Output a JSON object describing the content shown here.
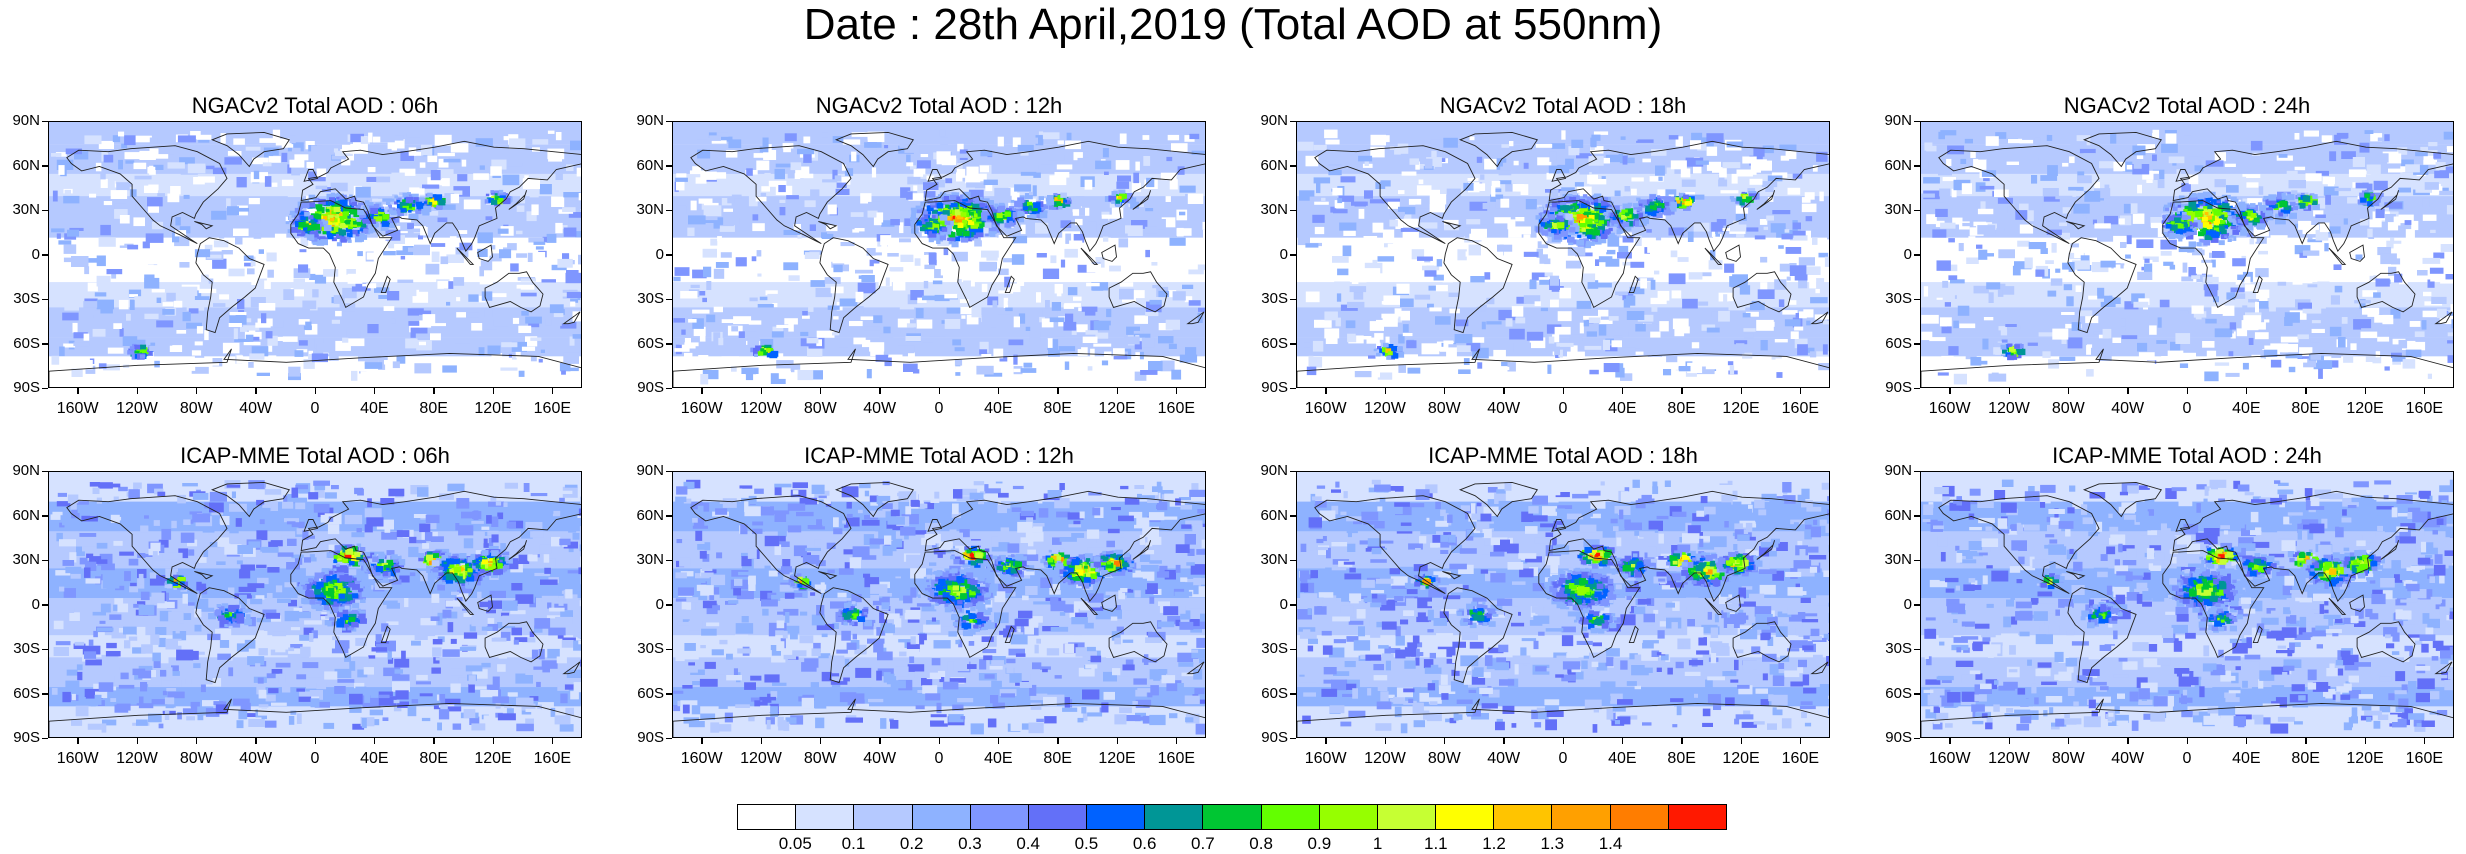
{
  "title": "Date : 28th April,2019 (Total AOD at 550nm)",
  "lat_labels": [
    "90N",
    "60N",
    "30N",
    "0",
    "30S",
    "60S",
    "90S"
  ],
  "lon_labels": [
    "160W",
    "120W",
    "80W",
    "40W",
    "0",
    "40E",
    "80E",
    "120E",
    "160E"
  ],
  "panels": [
    {
      "title": "NGACv2 Total AOD : 06h",
      "model": "NGACv2",
      "hour": "06h"
    },
    {
      "title": "NGACv2 Total AOD : 12h",
      "model": "NGACv2",
      "hour": "12h"
    },
    {
      "title": "NGACv2 Total AOD : 18h",
      "model": "NGACv2",
      "hour": "18h"
    },
    {
      "title": "NGACv2 Total AOD : 24h",
      "model": "NGACv2",
      "hour": "24h"
    },
    {
      "title": "ICAP-MME Total AOD : 06h",
      "model": "ICAP-MME",
      "hour": "06h"
    },
    {
      "title": "ICAP-MME Total AOD : 12h",
      "model": "ICAP-MME",
      "hour": "12h"
    },
    {
      "title": "ICAP-MME Total AOD : 18h",
      "model": "ICAP-MME",
      "hour": "18h"
    },
    {
      "title": "ICAP-MME Total AOD : 24h",
      "model": "ICAP-MME",
      "hour": "24h"
    }
  ],
  "colorbar": {
    "labels": [
      "0.05",
      "0.1",
      "0.2",
      "0.3",
      "0.4",
      "0.5",
      "0.6",
      "0.7",
      "0.8",
      "0.9",
      "1",
      "1.1",
      "1.2",
      "1.3",
      "1.4"
    ],
    "colors": [
      "#ffffff",
      "#d6e2ff",
      "#b5c9ff",
      "#8eb2ff",
      "#7f96ff",
      "#6370f8",
      "#0062ff",
      "#009696",
      "#00c633",
      "#63ff00",
      "#96ff00",
      "#c6ff33",
      "#ffff00",
      "#ffc400",
      "#ffa000",
      "#ff7d00",
      "#ff1900"
    ]
  }
}
